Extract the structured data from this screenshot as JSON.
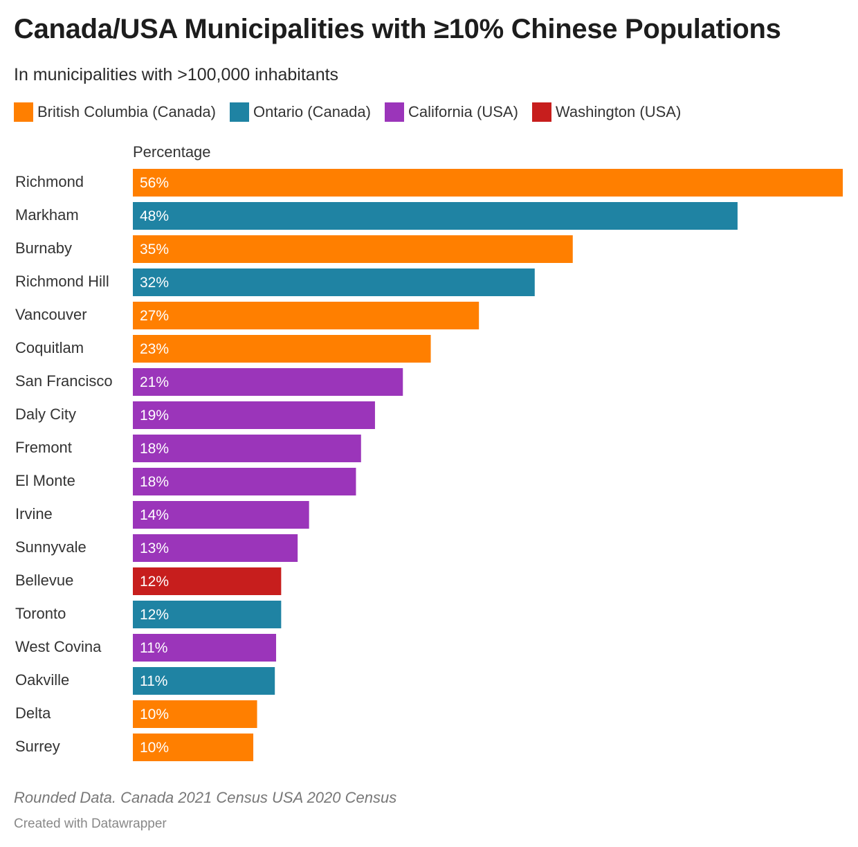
{
  "title": "Canada/USA Municipalities with ≥10% Chinese Populations",
  "subtitle": "In municipalities with >100,000 inhabitants",
  "legend": [
    {
      "label": "British Columbia (Canada)",
      "color": "#ff7f00"
    },
    {
      "label": "Ontario (Canada)",
      "color": "#1f83a3"
    },
    {
      "label": "California (USA)",
      "color": "#9b35ba"
    },
    {
      "label": "Washington (USA)",
      "color": "#c71e1d"
    }
  ],
  "column_header": "Percentage",
  "chart_data": {
    "type": "bar",
    "orientation": "horizontal",
    "title": "Canada/USA Municipalities with ≥10% Chinese Populations",
    "xlabel": "Percentage",
    "ylabel": "",
    "xlim": [
      0,
      56
    ],
    "categories": [
      "Richmond",
      "Markham",
      "Burnaby",
      "Richmond Hill",
      "Vancouver",
      "Coquitlam",
      "San Francisco",
      "Daly City",
      "Fremont",
      "El Monte",
      "Irvine",
      "Sunnyvale",
      "Bellevue",
      "Toronto",
      "West Covina",
      "Oakville",
      "Delta",
      "Surrey"
    ],
    "values": [
      56,
      47.7,
      34.7,
      31.7,
      27.3,
      23.5,
      21.3,
      19.1,
      18,
      17.6,
      13.9,
      13,
      11.7,
      11.7,
      11.3,
      11.2,
      9.8,
      9.5
    ],
    "value_labels": [
      "56%",
      "48%",
      "35%",
      "32%",
      "27%",
      "23%",
      "21%",
      "19%",
      "18%",
      "18%",
      "14%",
      "13%",
      "12%",
      "12%",
      "11%",
      "11%",
      "10%",
      "10%"
    ],
    "groups": [
      "British Columbia (Canada)",
      "Ontario (Canada)",
      "British Columbia (Canada)",
      "Ontario (Canada)",
      "British Columbia (Canada)",
      "British Columbia (Canada)",
      "California (USA)",
      "California (USA)",
      "California (USA)",
      "California (USA)",
      "California (USA)",
      "California (USA)",
      "Washington (USA)",
      "Ontario (Canada)",
      "California (USA)",
      "Ontario (Canada)",
      "British Columbia (Canada)",
      "British Columbia (Canada)"
    ],
    "colors": [
      "#ff7f00",
      "#1f83a3",
      "#ff7f00",
      "#1f83a3",
      "#ff7f00",
      "#ff7f00",
      "#9b35ba",
      "#9b35ba",
      "#9b35ba",
      "#9b35ba",
      "#9b35ba",
      "#9b35ba",
      "#c71e1d",
      "#1f83a3",
      "#9b35ba",
      "#1f83a3",
      "#ff7f00",
      "#ff7f00"
    ]
  },
  "notes": "Rounded Data. Canada 2021 Census USA 2020 Census",
  "credit": "Created with Datawrapper"
}
